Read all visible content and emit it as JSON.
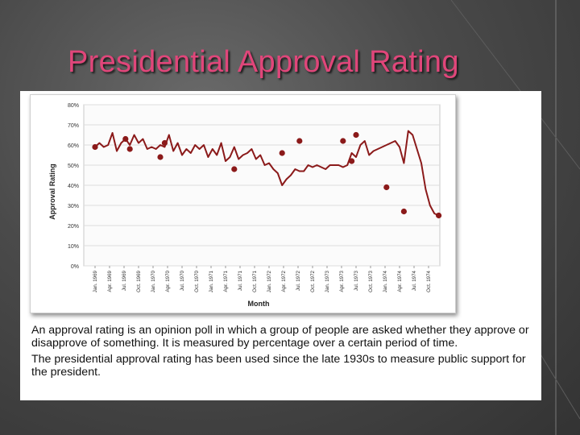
{
  "slide": {
    "title": "Presidential Approval Rating",
    "paragraphs": [
      "An approval rating is an opinion poll in which a group of people are asked whether they approve or disapprove of something. It is measured by percentage over a certain period of time.",
      "The presidential approval rating has been used since the late 1930s to measure public support for the president."
    ]
  },
  "colors": {
    "title": "#e0467a",
    "line": "#8b1a1a",
    "background": "#4a4a4a"
  },
  "chart_data": {
    "type": "line",
    "title": "",
    "xlabel": "Month",
    "ylabel": "Approval Rating",
    "ylim": [
      0,
      80
    ],
    "y_ticks": [
      "0%",
      "10%",
      "20%",
      "30%",
      "40%",
      "50%",
      "60%",
      "70%",
      "80%"
    ],
    "x_tick_labels": [
      "Jan. 1969",
      "Apr. 1969",
      "Jul. 1969",
      "Oct. 1969",
      "Jan. 1970",
      "Apr. 1970",
      "Jul. 1970",
      "Oct. 1970",
      "Jan. 1971",
      "Apr. 1971",
      "Jul. 1971",
      "Oct. 1971",
      "Jan. 1972",
      "Apr. 1972",
      "Jul. 1972",
      "Oct. 1972",
      "Jan. 1973",
      "Apr. 1973",
      "Jul. 1973",
      "Oct. 1973",
      "Jan. 1974",
      "Apr. 1974",
      "Jul. 1974",
      "Oct. 1974"
    ],
    "grid": true,
    "legend": "none",
    "x": [
      0,
      0.3,
      0.6,
      0.9,
      1.2,
      1.5,
      1.8,
      2.1,
      2.4,
      2.7,
      3.0,
      3.3,
      3.6,
      3.9,
      4.2,
      4.5,
      4.8,
      5.1,
      5.4,
      5.7,
      6.0,
      6.3,
      6.6,
      6.9,
      7.2,
      7.5,
      7.8,
      8.1,
      8.4,
      8.7,
      9.0,
      9.3,
      9.6,
      9.9,
      10.2,
      10.5,
      10.8,
      11.1,
      11.4,
      11.7,
      12.0,
      12.3,
      12.6,
      12.9,
      13.2,
      13.5,
      13.8,
      14.1,
      14.4,
      14.7,
      15.0,
      15.3,
      15.6,
      15.9,
      16.2,
      16.5,
      16.8,
      17.1,
      17.4,
      17.7,
      18.0,
      18.3,
      18.6,
      18.9,
      19.2,
      19.5,
      19.8,
      20.1,
      20.4,
      20.7,
      21.0,
      21.3,
      21.6,
      21.9,
      22.2,
      22.5,
      22.8,
      23.1,
      23.4,
      23.7
    ],
    "values": [
      59,
      61,
      59,
      60,
      66,
      57,
      61,
      63,
      60,
      65,
      61,
      63,
      58,
      59,
      58,
      60,
      59,
      65,
      57,
      61,
      55,
      58,
      56,
      60,
      58,
      60,
      54,
      58,
      55,
      61,
      52,
      54,
      59,
      53,
      55,
      56,
      58,
      53,
      55,
      50,
      51,
      48,
      46,
      40,
      43,
      45,
      48,
      47,
      47,
      50,
      49,
      50,
      49,
      48,
      50,
      50,
      50,
      49,
      50,
      56,
      54,
      60,
      62,
      55,
      57,
      58,
      59,
      60,
      61,
      62,
      59,
      51,
      67,
      65,
      58,
      51,
      38,
      30,
      26,
      25
    ],
    "markers": [
      {
        "x": 0.0,
        "y": 59
      },
      {
        "x": 2.1,
        "y": 63
      },
      {
        "x": 2.4,
        "y": 58
      },
      {
        "x": 4.5,
        "y": 54
      },
      {
        "x": 4.8,
        "y": 61
      },
      {
        "x": 9.6,
        "y": 48
      },
      {
        "x": 12.9,
        "y": 56
      },
      {
        "x": 14.1,
        "y": 62
      },
      {
        "x": 17.1,
        "y": 62
      },
      {
        "x": 17.7,
        "y": 52
      },
      {
        "x": 18.0,
        "y": 65
      },
      {
        "x": 20.1,
        "y": 39
      },
      {
        "x": 21.3,
        "y": 27
      },
      {
        "x": 23.7,
        "y": 25
      }
    ]
  }
}
